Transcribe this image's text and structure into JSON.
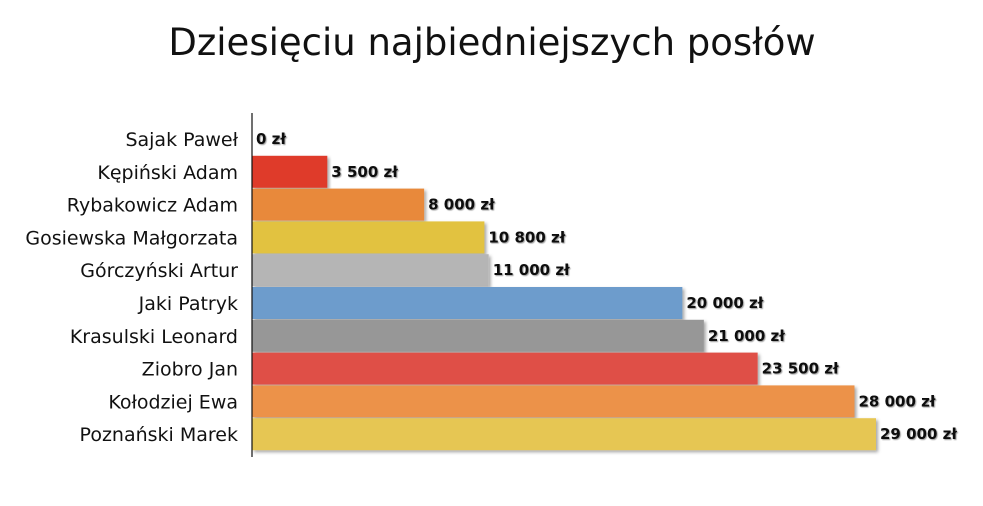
{
  "chart_data": {
    "type": "bar",
    "orientation": "horizontal",
    "title": "Dziesięciu najbiedniejszych posłów",
    "xlabel": "",
    "ylabel": "",
    "xlim": [
      0,
      29000
    ],
    "grid": false,
    "legend": "none",
    "categories": [
      "Sajak Paweł",
      "Kępiński Adam",
      "Rybakowicz Adam",
      "Gosiewska Małgorzata",
      "Górczyński Artur",
      "Jaki Patryk",
      "Krasulski Leonard",
      "Ziobro Jan",
      "Kołodziej Ewa",
      "Poznański Marek"
    ],
    "values": [
      0,
      3500,
      8000,
      10800,
      11000,
      20000,
      21000,
      23500,
      28000,
      29000
    ],
    "value_labels": [
      "0 zł",
      "3 500 zł",
      "8 000 zł",
      "10 800 zł",
      "11 000 zł",
      "20 000 zł",
      "21 000 zł",
      "23 500 zł",
      "28 000 zł",
      "29 000 zł"
    ],
    "colors": [
      "#d9d9d9",
      "#df3b2c",
      "#e8893a",
      "#e2c240",
      "#b5b5b5",
      "#6d9ccc",
      "#979797",
      "#df4f46",
      "#ec9248",
      "#e6c653"
    ]
  }
}
